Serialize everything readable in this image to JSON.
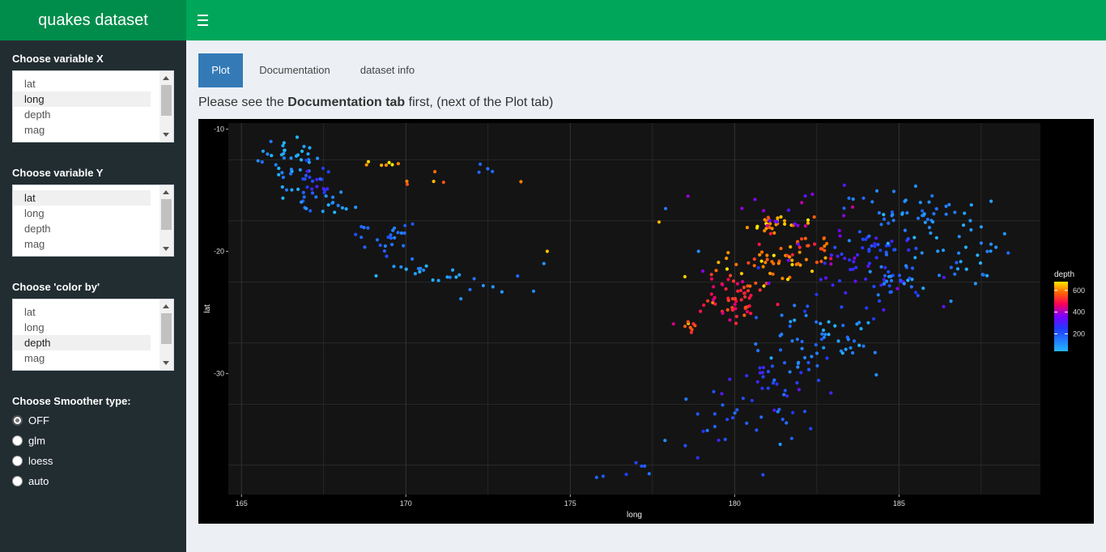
{
  "app": {
    "title": "quakes dataset"
  },
  "sidebar": {
    "var_x": {
      "label": "Choose variable X",
      "options": [
        "lat",
        "long",
        "depth",
        "mag"
      ],
      "selected": "long"
    },
    "var_y": {
      "label": "Choose variable Y",
      "options": [
        "lat",
        "long",
        "depth",
        "mag"
      ],
      "selected": "lat"
    },
    "color_by": {
      "label": "Choose 'color by'",
      "options": [
        "lat",
        "long",
        "depth",
        "mag"
      ],
      "selected": "depth"
    },
    "smoother": {
      "label": "Choose Smoother type:",
      "options": [
        "OFF",
        "glm",
        "loess",
        "auto"
      ],
      "selected": "OFF"
    }
  },
  "tabs": [
    {
      "label": "Plot",
      "active": true
    },
    {
      "label": "Documentation",
      "active": false
    },
    {
      "label": "dataset info",
      "active": false
    }
  ],
  "note": {
    "prefix": "Please see the ",
    "bold": "Documentation tab",
    "suffix": " first, (next of the Plot tab)"
  },
  "colors": {
    "logo_bg": "#008d4c",
    "topbar_bg": "#00a65a",
    "sidebar_bg": "#222d32",
    "tab_active": "#337ab7"
  },
  "chart_data": {
    "type": "scatter",
    "xlabel": "long",
    "ylabel": "lat",
    "xlim": [
      164.6,
      189.3
    ],
    "ylim": [
      -39.9,
      -9.5
    ],
    "xticks": [
      165,
      170,
      175,
      180,
      185
    ],
    "yticks": [
      -10,
      -20,
      -30
    ],
    "legend": {
      "title": "depth",
      "ticks": [
        200,
        400,
        600
      ],
      "range": [
        40,
        680
      ],
      "placement": "right"
    },
    "grid": true,
    "clusters": [
      {
        "x": 166.4,
        "y": -12.5,
        "sx": 0.45,
        "sy": 1.2,
        "d": 90,
        "n": 40
      },
      {
        "x": 167.2,
        "y": -14.8,
        "sx": 0.35,
        "sy": 0.9,
        "d": 230,
        "n": 22
      },
      {
        "x": 167.6,
        "y": -16.1,
        "sx": 0.45,
        "sy": 0.5,
        "d": 110,
        "n": 18
      },
      {
        "x": 169.3,
        "y": -18.8,
        "sx": 0.6,
        "sy": 0.7,
        "d": 170,
        "n": 24
      },
      {
        "x": 170.4,
        "y": -21.5,
        "sx": 0.6,
        "sy": 0.6,
        "d": 90,
        "n": 12
      },
      {
        "x": 171.5,
        "y": -22.3,
        "sx": 0.5,
        "sy": 0.4,
        "d": 130,
        "n": 8
      },
      {
        "x": 172.5,
        "y": -22.5,
        "sx": 0.8,
        "sy": 0.6,
        "d": 80,
        "n": 6
      },
      {
        "x": 169.4,
        "y": -12.9,
        "sx": 0.3,
        "sy": 0.2,
        "d": 640,
        "n": 7
      },
      {
        "x": 170.8,
        "y": -14.2,
        "sx": 0.5,
        "sy": 0.4,
        "d": 600,
        "n": 5
      },
      {
        "x": 172.5,
        "y": -13.5,
        "sx": 0.3,
        "sy": 0.3,
        "d": 140,
        "n": 4
      },
      {
        "x": 181.4,
        "y": -17.8,
        "sx": 0.5,
        "sy": 0.35,
        "d": 620,
        "n": 28
      },
      {
        "x": 181.2,
        "y": -21.0,
        "sx": 0.8,
        "sy": 0.7,
        "d": 600,
        "n": 45
      },
      {
        "x": 182.2,
        "y": -19.4,
        "sx": 0.5,
        "sy": 0.6,
        "d": 560,
        "n": 18
      },
      {
        "x": 180.0,
        "y": -24.0,
        "sx": 0.4,
        "sy": 0.9,
        "d": 520,
        "n": 38
      },
      {
        "x": 179.5,
        "y": -23.4,
        "sx": 0.6,
        "sy": 1.0,
        "d": 480,
        "n": 22
      },
      {
        "x": 178.6,
        "y": -26.0,
        "sx": 0.15,
        "sy": 0.4,
        "d": 560,
        "n": 8
      },
      {
        "x": 182.0,
        "y": -16.5,
        "sx": 1.2,
        "sy": 1.0,
        "d": 370,
        "n": 20
      },
      {
        "x": 183.5,
        "y": -21.5,
        "sx": 1.2,
        "sy": 1.8,
        "d": 280,
        "n": 55
      },
      {
        "x": 184.3,
        "y": -19.7,
        "sx": 0.6,
        "sy": 0.5,
        "d": 200,
        "n": 20
      },
      {
        "x": 185.5,
        "y": -16.8,
        "sx": 1.2,
        "sy": 1.0,
        "d": 130,
        "n": 45
      },
      {
        "x": 186.6,
        "y": -20.0,
        "sx": 1.0,
        "sy": 1.4,
        "d": 90,
        "n": 40
      },
      {
        "x": 184.8,
        "y": -22.5,
        "sx": 0.4,
        "sy": 1.2,
        "d": 160,
        "n": 18
      },
      {
        "x": 182.0,
        "y": -27.5,
        "sx": 0.7,
        "sy": 1.3,
        "d": 120,
        "n": 40
      },
      {
        "x": 183.5,
        "y": -27.5,
        "sx": 0.4,
        "sy": 1.2,
        "d": 90,
        "n": 18
      },
      {
        "x": 181.0,
        "y": -30.5,
        "sx": 0.9,
        "sy": 1.2,
        "d": 250,
        "n": 25
      },
      {
        "x": 180.3,
        "y": -33.5,
        "sx": 1.1,
        "sy": 1.3,
        "d": 190,
        "n": 25
      },
      {
        "x": 178.5,
        "y": -36.5,
        "sx": 1.4,
        "sy": 1.4,
        "d": 200,
        "n": 9
      }
    ],
    "points": [
      {
        "x": 177.7,
        "y": -17.6,
        "d": 640
      },
      {
        "x": 177.9,
        "y": -16.5,
        "d": 140
      },
      {
        "x": 174.3,
        "y": -20.0,
        "d": 650
      },
      {
        "x": 178.9,
        "y": -20.0,
        "d": 110
      },
      {
        "x": 173.5,
        "y": -14.3,
        "d": 600
      },
      {
        "x": 174.2,
        "y": -21.0,
        "d": 100
      },
      {
        "x": 176.0,
        "y": -38.4,
        "d": 200
      },
      {
        "x": 175.8,
        "y": -38.5,
        "d": 180
      },
      {
        "x": 177.0,
        "y": -37.3,
        "d": 230
      },
      {
        "x": 177.4,
        "y": -38.2,
        "d": 150
      },
      {
        "x": 178.5,
        "y": -35.9,
        "d": 210
      },
      {
        "x": 187.2,
        "y": -16.2,
        "d": 60
      },
      {
        "x": 187.8,
        "y": -15.9,
        "d": 70
      },
      {
        "x": 187.5,
        "y": -18.0,
        "d": 80
      }
    ]
  }
}
